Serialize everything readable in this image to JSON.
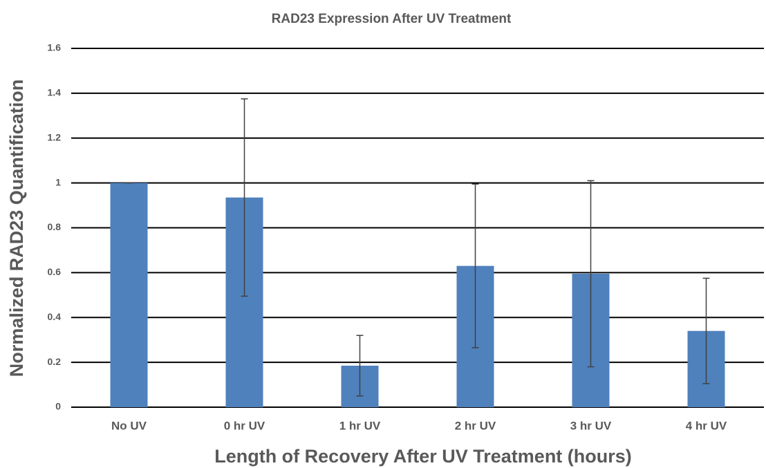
{
  "chart_data": {
    "type": "bar",
    "title": "RAD23 Expression After UV Treatment",
    "xlabel": "Length of Recovery After UV Treatment (hours)",
    "ylabel": "Normalized RAD23 Quantification",
    "categories": [
      "No UV",
      "0 hr UV",
      "1 hr UV",
      "2 hr UV",
      "3 hr UV",
      "4 hr UV"
    ],
    "values": [
      1.0,
      0.935,
      0.185,
      0.63,
      0.595,
      0.34
    ],
    "errors": [
      0,
      0.44,
      0.135,
      0.365,
      0.415,
      0.235
    ],
    "color": "#4f81bd",
    "error_color": "#404040",
    "ylim": [
      0,
      1.6
    ],
    "yticks": [
      0,
      0.2,
      0.4,
      0.6,
      0.8,
      1,
      1.2,
      1.4,
      1.6
    ],
    "grid": true
  }
}
